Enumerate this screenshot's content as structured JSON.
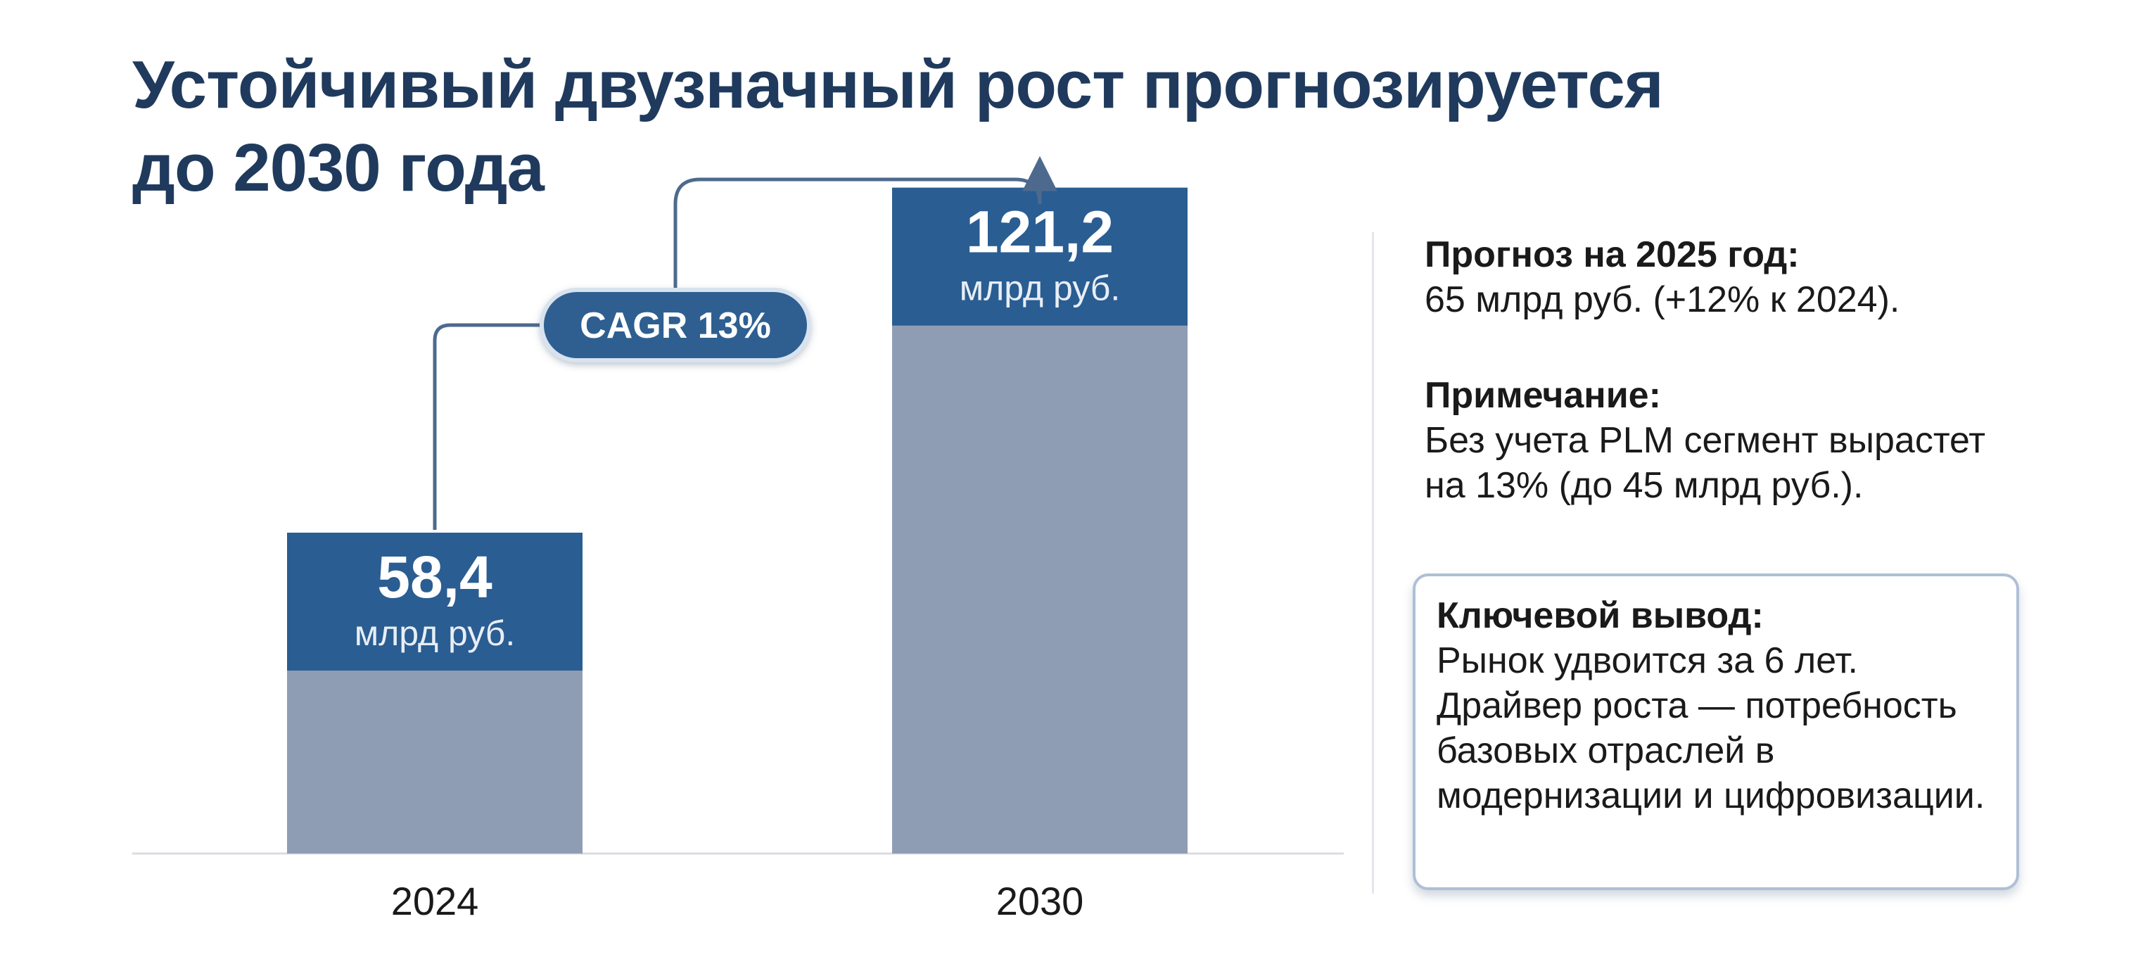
{
  "title": {
    "line1": "Устойчивый двузначный рост прогнозируется",
    "line2": "до 2030 года"
  },
  "chart_data": {
    "type": "bar",
    "categories": [
      "2024",
      "2030"
    ],
    "values": [
      58.4,
      121.2
    ],
    "value_labels": [
      "58,4",
      "121,2"
    ],
    "unit_label": "млрд руб.",
    "cagr_label": "CAGR 13%",
    "ylim": [
      0,
      130
    ],
    "grid": false,
    "colors": {
      "bar_base": "#8f9db4",
      "bar_top": "#2a5d92",
      "badge": "#2f5f90",
      "connector": "#4d6a8e",
      "axis": "#d9dce1"
    }
  },
  "sidebar": {
    "forecast": {
      "heading": "Прогноз на 2025 год:",
      "text": "65 млрд руб. (+12% к 2024)."
    },
    "note": {
      "heading": "Примечание:",
      "text": "Без учета PLM сегмент вырастет на 13% (до 45 млрд руб.)."
    },
    "conclusion": {
      "heading": "Ключевой вывод:",
      "text": "Рынок удвоится за 6 лет. Драйвер роста — потребность базовых отраслей в модернизации и цифровизации."
    }
  }
}
